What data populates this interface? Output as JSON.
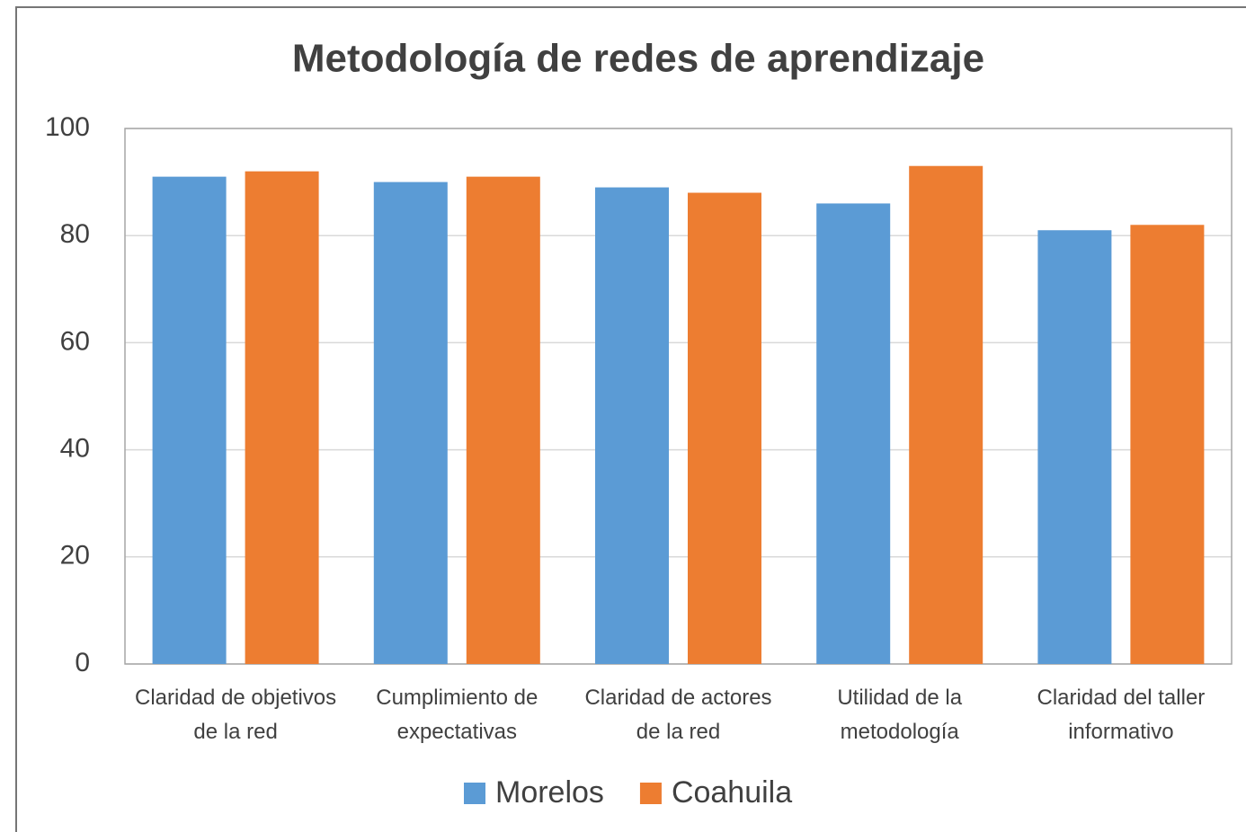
{
  "chart_data": {
    "type": "bar",
    "title": "Metodología de redes de aprendizaje",
    "categories": [
      "Claridad de objetivos de la red",
      "Cumplimiento de expectativas",
      "Claridad de actores de la red",
      "Utilidad de la metodología",
      "Claridad del taller informativo"
    ],
    "series": [
      {
        "name": "Morelos",
        "color": "#5b9bd5",
        "values": [
          91,
          90,
          89,
          86,
          81
        ]
      },
      {
        "name": "Coahuila",
        "color": "#ed7d31",
        "values": [
          92,
          91,
          88,
          93,
          82
        ]
      }
    ],
    "ylim": [
      0,
      100
    ],
    "yticks": [
      0,
      20,
      40,
      60,
      80,
      100
    ],
    "grid": true,
    "legend": "bottom"
  }
}
